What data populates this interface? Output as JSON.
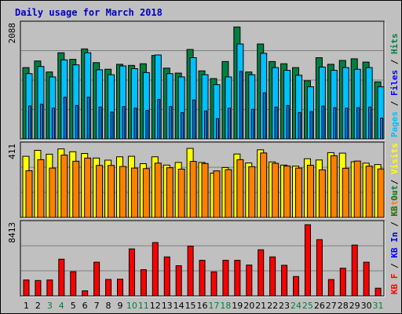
{
  "title": "Daily usage for March 2018",
  "colors": {
    "background": "#c0c0c0",
    "title": "#0000c0",
    "grid": "#808080",
    "hits": "#008040",
    "files": "#00c0ff",
    "pages": "#0080ff",
    "visits": "#ffff00",
    "sites": "#ff8000",
    "kbin": "#0000ff",
    "kbout": "#008040",
    "kbf": "#ff0000",
    "weekday_label": "#000000",
    "weekend_label": "#008040"
  },
  "chart_data": [
    {
      "type": "bar",
      "name": "hits-files-pages",
      "ymax_label": "2088",
      "ylim": [
        0,
        2088
      ],
      "grid": true,
      "legend": [
        {
          "key": "pages",
          "text": "Pages",
          "color": "#00c0ff"
        },
        {
          "key": "files",
          "text": "Files",
          "color": "#0000ff"
        },
        {
          "key": "hits",
          "text": "Hits",
          "color": "#008040"
        }
      ],
      "categories": [
        "1",
        "2",
        "3",
        "4",
        "5",
        "6",
        "7",
        "8",
        "9",
        "10",
        "11",
        "12",
        "13",
        "14",
        "15",
        "16",
        "17",
        "18",
        "19",
        "20",
        "21",
        "22",
        "23",
        "24",
        "25",
        "26",
        "27",
        "28",
        "29",
        "30",
        "31"
      ],
      "series": [
        {
          "name": "Hits",
          "values": [
            1300,
            1420,
            1220,
            1570,
            1450,
            1640,
            1390,
            1270,
            1360,
            1340,
            1370,
            1520,
            1290,
            1200,
            1630,
            1240,
            1100,
            1410,
            2040,
            1220,
            1730,
            1410,
            1370,
            1300,
            1060,
            1480,
            1360,
            1430,
            1460,
            1400,
            1040
          ]
        },
        {
          "name": "Files",
          "values": [
            1190,
            1320,
            1130,
            1440,
            1350,
            1570,
            1260,
            1170,
            1330,
            1280,
            1210,
            1530,
            1190,
            1130,
            1480,
            1170,
            990,
            1130,
            1730,
            1170,
            1560,
            1300,
            1250,
            1160,
            950,
            1310,
            1250,
            1300,
            1270,
            1300,
            950
          ]
        },
        {
          "name": "Pages",
          "values": [
            600,
            630,
            560,
            760,
            610,
            760,
            580,
            490,
            590,
            560,
            520,
            720,
            590,
            480,
            710,
            510,
            370,
            560,
            1230,
            540,
            840,
            580,
            610,
            480,
            500,
            600,
            570,
            560,
            570,
            580,
            380
          ]
        }
      ]
    },
    {
      "type": "bar",
      "name": "visits-sites",
      "ymax_label": "411",
      "ylim": [
        0,
        411
      ],
      "grid": true,
      "legend": [
        {
          "key": "sites",
          "text": "Sites",
          "color": "#ff8000"
        },
        {
          "key": "visits",
          "text": "Visits",
          "color": "#ffff00"
        }
      ],
      "categories": [
        "1",
        "2",
        "3",
        "4",
        "5",
        "6",
        "7",
        "8",
        "9",
        "10",
        "11",
        "12",
        "13",
        "14",
        "15",
        "16",
        "17",
        "18",
        "19",
        "20",
        "21",
        "22",
        "23",
        "24",
        "25",
        "26",
        "27",
        "28",
        "29",
        "30",
        "31"
      ],
      "series": [
        {
          "name": "Visits",
          "values": [
            348,
            382,
            360,
            390,
            374,
            364,
            338,
            326,
            345,
            348,
            306,
            345,
            298,
            313,
            393,
            313,
            252,
            284,
            361,
            310,
            385,
            316,
            298,
            292,
            334,
            327,
            369,
            366,
            317,
            309,
            301
          ]
        },
        {
          "name": "Sites",
          "values": [
            266,
            329,
            281,
            355,
            320,
            338,
            296,
            296,
            290,
            281,
            278,
            309,
            283,
            275,
            319,
            307,
            265,
            272,
            329,
            289,
            367,
            308,
            293,
            281,
            297,
            271,
            351,
            280,
            321,
            292,
            276
          ]
        }
      ]
    },
    {
      "type": "bar",
      "name": "kbytes",
      "ymax_label": "8413",
      "ylim": [
        0,
        8413
      ],
      "grid": true,
      "legend": [
        {
          "key": "kbf",
          "text": "KB F",
          "color": "#ff0000"
        },
        {
          "key": "kbin",
          "text": "KB In",
          "color": "#0000ff"
        },
        {
          "key": "kbout",
          "text": "KB Out",
          "color": "#008040"
        }
      ],
      "categories": [
        "1",
        "2",
        "3",
        "4",
        "5",
        "6",
        "7",
        "8",
        "9",
        "10",
        "11",
        "12",
        "13",
        "14",
        "15",
        "16",
        "17",
        "18",
        "19",
        "20",
        "21",
        "22",
        "23",
        "24",
        "25",
        "26",
        "27",
        "28",
        "29",
        "30",
        "31"
      ],
      "series": [
        {
          "name": "KB F",
          "values": [
            1860,
            1800,
            1860,
            4280,
            2820,
            600,
            3930,
            1920,
            1950,
            5480,
            3060,
            6220,
            4550,
            3520,
            5800,
            4150,
            2800,
            4150,
            4150,
            3600,
            5380,
            4550,
            3570,
            2260,
            8300,
            6560,
            1910,
            3230,
            5930,
            3930,
            900
          ]
        }
      ]
    }
  ],
  "days": [
    {
      "label": "1",
      "weekend": false
    },
    {
      "label": "2",
      "weekend": false
    },
    {
      "label": "3",
      "weekend": true
    },
    {
      "label": "4",
      "weekend": true
    },
    {
      "label": "5",
      "weekend": false
    },
    {
      "label": "6",
      "weekend": false
    },
    {
      "label": "7",
      "weekend": false
    },
    {
      "label": "8",
      "weekend": false
    },
    {
      "label": "9",
      "weekend": false
    },
    {
      "label": "10",
      "weekend": true
    },
    {
      "label": "11",
      "weekend": true
    },
    {
      "label": "12",
      "weekend": false
    },
    {
      "label": "13",
      "weekend": false
    },
    {
      "label": "14",
      "weekend": false
    },
    {
      "label": "15",
      "weekend": false
    },
    {
      "label": "16",
      "weekend": false
    },
    {
      "label": "17",
      "weekend": true
    },
    {
      "label": "18",
      "weekend": true
    },
    {
      "label": "19",
      "weekend": false
    },
    {
      "label": "20",
      "weekend": false
    },
    {
      "label": "21",
      "weekend": false
    },
    {
      "label": "22",
      "weekend": false
    },
    {
      "label": "23",
      "weekend": false
    },
    {
      "label": "24",
      "weekend": true
    },
    {
      "label": "25",
      "weekend": true
    },
    {
      "label": "26",
      "weekend": false
    },
    {
      "label": "27",
      "weekend": false
    },
    {
      "label": "28",
      "weekend": false
    },
    {
      "label": "29",
      "weekend": false
    },
    {
      "label": "30",
      "weekend": false
    },
    {
      "label": "31",
      "weekend": true
    }
  ]
}
